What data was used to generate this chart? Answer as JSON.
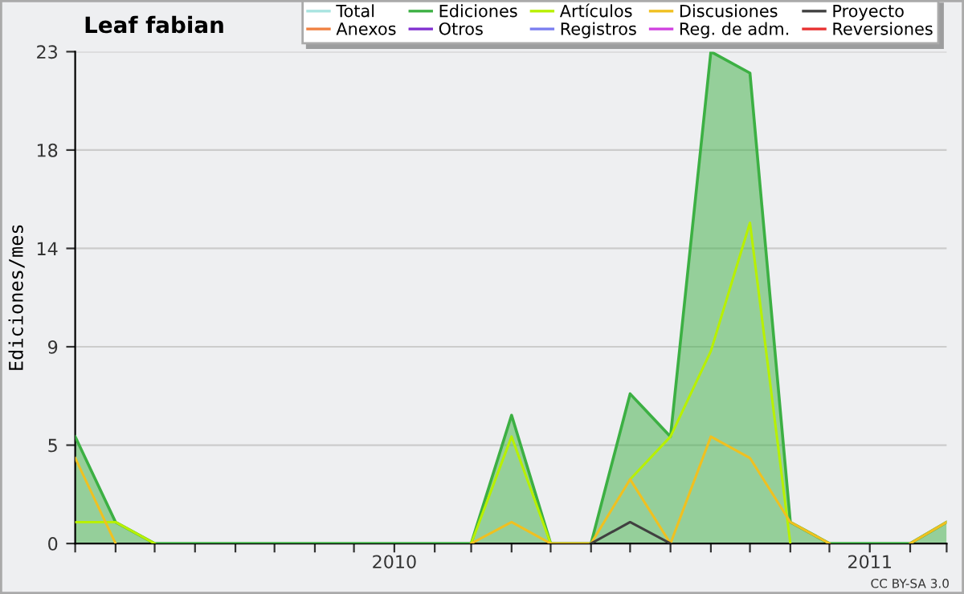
{
  "chart_data": {
    "type": "line",
    "title": "Leaf fabian",
    "ylabel": "Ediciones/mes",
    "x": [
      "2009-05",
      "2009-06",
      "2009-07",
      "2009-08",
      "2009-09",
      "2009-10",
      "2009-11",
      "2009-12",
      "2010-01",
      "2010-02",
      "2010-03",
      "2010-04",
      "2010-05",
      "2010-06",
      "2010-07",
      "2010-08",
      "2010-09",
      "2010-10",
      "2010-11",
      "2010-12",
      "2011-01",
      "2011-02",
      "2011-03"
    ],
    "series": [
      {
        "name": "Total",
        "color": "#a8e4e0",
        "values": [
          null,
          null,
          null,
          null,
          null,
          null,
          null,
          null,
          null,
          null,
          null,
          null,
          null,
          null,
          null,
          null,
          null,
          null,
          null,
          null,
          null,
          null,
          null
        ]
      },
      {
        "name": "Ediciones",
        "type": "area",
        "color": "#3cb043",
        "values": [
          5,
          1,
          0,
          0,
          0,
          0,
          0,
          0,
          0,
          0,
          0,
          6,
          0,
          0,
          7,
          5,
          23,
          22,
          1,
          0,
          0,
          0,
          1
        ]
      },
      {
        "name": "Artículos",
        "color": "#b8f000",
        "values": [
          1,
          1,
          0,
          null,
          null,
          null,
          null,
          null,
          null,
          null,
          0,
          5,
          0,
          null,
          3,
          5,
          9,
          15,
          0,
          null,
          null,
          null,
          null
        ]
      },
      {
        "name": "Discusiones",
        "color": "#f0c020",
        "values": [
          4,
          0,
          null,
          null,
          null,
          null,
          null,
          null,
          null,
          null,
          0,
          1,
          0,
          0,
          3,
          0,
          5,
          4,
          1,
          0,
          null,
          0,
          1
        ]
      },
      {
        "name": "Proyecto",
        "color": "#404040",
        "values": [
          null,
          null,
          null,
          null,
          null,
          null,
          null,
          null,
          null,
          null,
          null,
          null,
          null,
          0,
          1,
          0,
          null,
          null,
          null,
          null,
          null,
          null,
          null
        ]
      },
      {
        "name": "Anexos",
        "color": "#f08040",
        "values": [
          null,
          null,
          null,
          null,
          null,
          null,
          null,
          null,
          null,
          null,
          null,
          null,
          null,
          null,
          null,
          null,
          null,
          null,
          null,
          null,
          null,
          null,
          null
        ]
      },
      {
        "name": "Otros",
        "color": "#8030d0",
        "values": [
          null,
          null,
          null,
          null,
          null,
          null,
          null,
          null,
          null,
          null,
          null,
          null,
          null,
          null,
          null,
          null,
          null,
          null,
          null,
          null,
          null,
          null,
          null
        ]
      },
      {
        "name": "Registros",
        "color": "#7a7ef0",
        "values": [
          null,
          null,
          null,
          null,
          null,
          null,
          null,
          null,
          null,
          null,
          null,
          null,
          null,
          null,
          null,
          null,
          null,
          null,
          null,
          null,
          null,
          null,
          null
        ]
      },
      {
        "name": "Reg. de adm.",
        "color": "#d040e0",
        "values": [
          null,
          null,
          null,
          null,
          null,
          null,
          null,
          null,
          null,
          null,
          null,
          null,
          null,
          null,
          null,
          null,
          null,
          null,
          null,
          null,
          null,
          null,
          null
        ]
      },
      {
        "name": "Reversiones",
        "color": "#e83030",
        "values": [
          null,
          null,
          null,
          null,
          null,
          null,
          null,
          null,
          null,
          null,
          null,
          null,
          null,
          null,
          null,
          null,
          null,
          null,
          null,
          null,
          null,
          null,
          null
        ]
      }
    ],
    "xlim": [
      "2009-05",
      "2011-03"
    ],
    "xticks": [
      {
        "value": "2009-05",
        "label": null
      },
      {
        "value": "2009-06",
        "label": null
      },
      {
        "value": "2009-07",
        "label": null
      },
      {
        "value": "2009-08",
        "label": null
      },
      {
        "value": "2009-09",
        "label": null
      },
      {
        "value": "2009-10",
        "label": null
      },
      {
        "value": "2009-11",
        "label": null
      },
      {
        "value": "2009-12",
        "label": null
      },
      {
        "value": "2010-01",
        "label": "2010"
      },
      {
        "value": "2010-02",
        "label": null
      },
      {
        "value": "2010-03",
        "label": null
      },
      {
        "value": "2010-04",
        "label": null
      },
      {
        "value": "2010-05",
        "label": null
      },
      {
        "value": "2010-06",
        "label": null
      },
      {
        "value": "2010-07",
        "label": null
      },
      {
        "value": "2010-08",
        "label": null
      },
      {
        "value": "2010-09",
        "label": null
      },
      {
        "value": "2010-10",
        "label": null
      },
      {
        "value": "2010-11",
        "label": null
      },
      {
        "value": "2010-12",
        "label": null
      },
      {
        "value": "2011-01",
        "label": "2011"
      },
      {
        "value": "2011-02",
        "label": null
      },
      {
        "value": "2011-03",
        "label": null
      }
    ],
    "ylim": [
      0,
      23
    ],
    "yticks": [
      0,
      {
        "value": 4.6,
        "label": "5"
      },
      {
        "value": 9.2,
        "label": "9"
      },
      {
        "value": 13.8,
        "label": "14"
      },
      {
        "value": 18.4,
        "label": "18"
      },
      23
    ],
    "grid": "y",
    "legend": "top right",
    "marker": "none",
    "line_style": "solid",
    "annotations": [
      "CC BY-SA 3.0"
    ]
  }
}
